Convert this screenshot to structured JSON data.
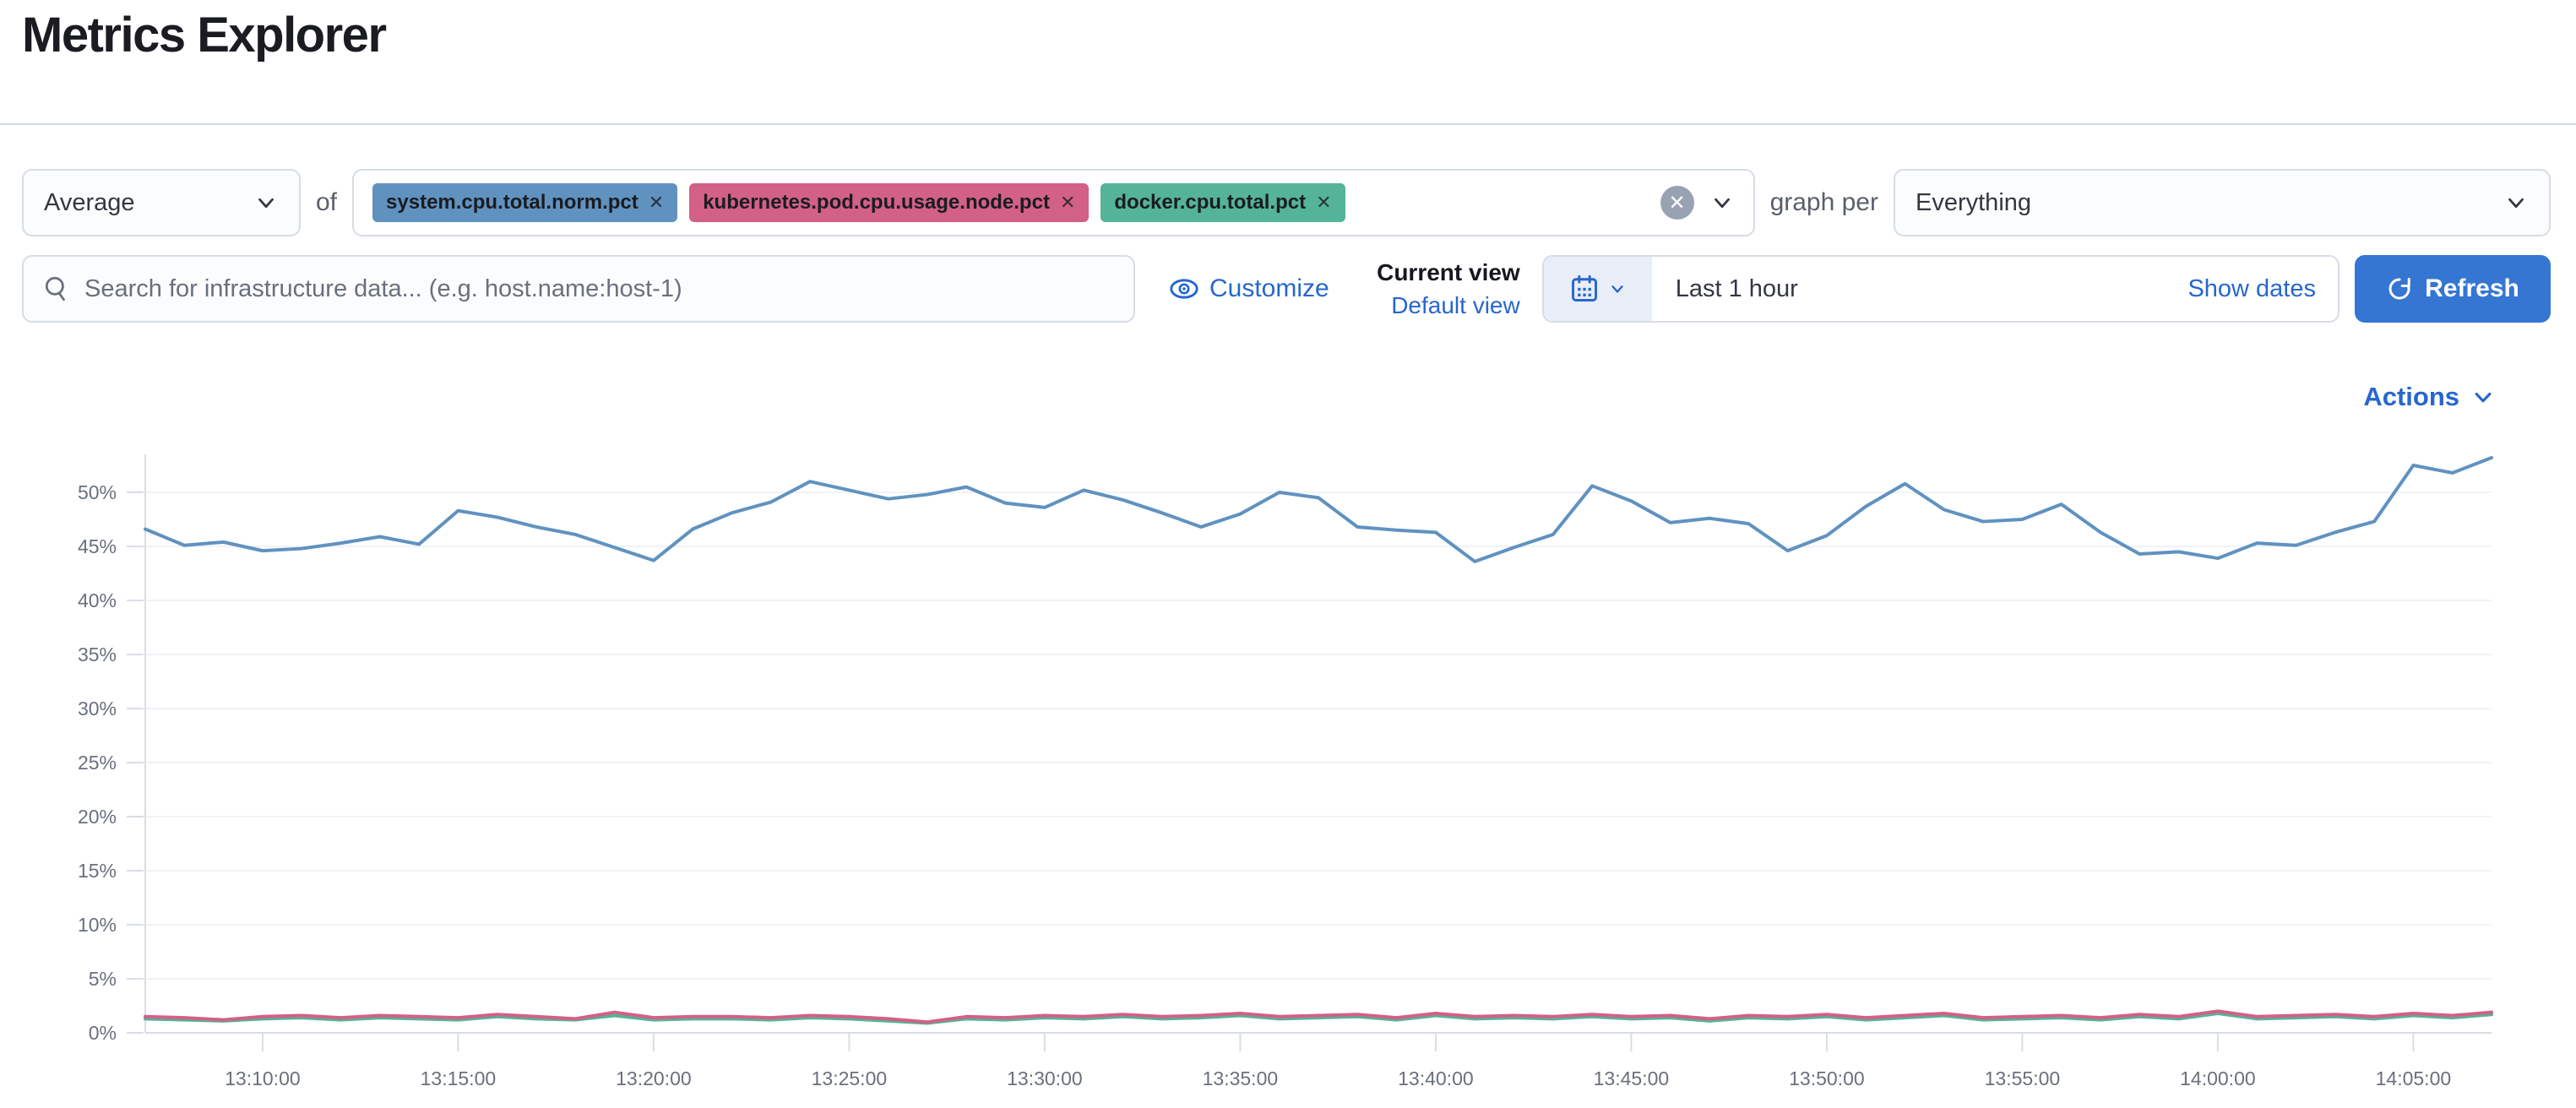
{
  "header": {
    "title": "Metrics Explorer"
  },
  "colors": {
    "link": "#2767cb",
    "primary_button": "#3476d2",
    "border": "#d7dce5",
    "field_bg": "#fbfcfd",
    "clear_circle": "#98a2b3"
  },
  "icons": {
    "remove_glyph": "✕",
    "clear_glyph": "✕"
  },
  "controls": {
    "aggregation": {
      "value": "Average"
    },
    "of_label": "of",
    "metrics": [
      {
        "label": "system.cpu.total.norm.pct",
        "color": "#6092C0"
      },
      {
        "label": "kubernetes.pod.cpu.usage.node.pct",
        "color": "#D36086"
      },
      {
        "label": "docker.cpu.total.pct",
        "color": "#54B399"
      }
    ],
    "graph_per_label": "graph per",
    "graph_per": {
      "value": "Everything"
    }
  },
  "toolbar": {
    "search_placeholder": "Search for infrastructure data... (e.g. host.name:host-1)",
    "search_value": "",
    "customize_label": "Customize",
    "current_view_label": "Current view",
    "default_view_label": "Default view",
    "time_range": "Last 1 hour",
    "show_dates_label": "Show dates",
    "refresh_label": "Refresh"
  },
  "actions": {
    "label": "Actions"
  },
  "chart_data": {
    "type": "line",
    "title": "",
    "xlabel": "",
    "ylabel": "",
    "unit": "%",
    "ylim": [
      0,
      55
    ],
    "grid": true,
    "legend": "none",
    "y_ticks": [
      0,
      5,
      10,
      15,
      20,
      25,
      30,
      35,
      40,
      45,
      50
    ],
    "x_ticks": [
      "13:10:00",
      "13:15:00",
      "13:20:00",
      "13:25:00",
      "13:30:00",
      "13:35:00",
      "13:40:00",
      "13:45:00",
      "13:50:00",
      "13:55:00",
      "14:00:00",
      "14:05:00"
    ],
    "x_range": [
      "13:07:00",
      "14:07:00"
    ],
    "x_first_tick_minute": 3,
    "x_tick_step_minutes": 5,
    "colors": {
      "grid": "#f0f2f6",
      "axis": "#d9dde4",
      "tick_text": "#69707d"
    },
    "series": [
      {
        "name": "system.cpu.total.norm.pct",
        "color": "#6092C0",
        "values": [
          46.6,
          45.1,
          45.4,
          44.6,
          44.8,
          45.3,
          45.9,
          45.2,
          48.3,
          47.7,
          46.8,
          46.1,
          44.9,
          43.7,
          46.6,
          48.1,
          49.1,
          51.0,
          50.2,
          49.4,
          49.8,
          50.5,
          49.0,
          48.6,
          50.2,
          49.3,
          48.1,
          46.8,
          48.0,
          50.0,
          49.5,
          46.8,
          46.5,
          46.3,
          43.6,
          44.9,
          46.1,
          50.6,
          49.2,
          47.2,
          47.6,
          47.1,
          44.6,
          46.0,
          48.7,
          50.8,
          48.4,
          47.3,
          47.5,
          48.9,
          46.3,
          44.3,
          44.5,
          43.9,
          45.3,
          45.1,
          46.3,
          47.3,
          52.5,
          51.8,
          53.2
        ]
      },
      {
        "name": "kubernetes.pod.cpu.usage.node.pct",
        "color": "#D36086",
        "values": [
          1.5,
          1.4,
          1.2,
          1.5,
          1.6,
          1.4,
          1.6,
          1.5,
          1.4,
          1.7,
          1.5,
          1.3,
          1.9,
          1.4,
          1.5,
          1.5,
          1.4,
          1.6,
          1.5,
          1.3,
          1.0,
          1.5,
          1.4,
          1.6,
          1.5,
          1.7,
          1.5,
          1.6,
          1.8,
          1.5,
          1.6,
          1.7,
          1.4,
          1.8,
          1.5,
          1.6,
          1.5,
          1.7,
          1.5,
          1.6,
          1.3,
          1.6,
          1.5,
          1.7,
          1.4,
          1.6,
          1.8,
          1.4,
          1.5,
          1.6,
          1.4,
          1.7,
          1.5,
          2.0,
          1.5,
          1.6,
          1.7,
          1.5,
          1.8,
          1.6,
          1.9
        ]
      },
      {
        "name": "docker.cpu.total.pct",
        "color": "#54B399",
        "values": [
          1.3,
          1.2,
          1.1,
          1.3,
          1.4,
          1.2,
          1.4,
          1.3,
          1.2,
          1.5,
          1.3,
          1.2,
          1.6,
          1.2,
          1.3,
          1.3,
          1.2,
          1.4,
          1.3,
          1.1,
          0.9,
          1.3,
          1.2,
          1.4,
          1.3,
          1.5,
          1.3,
          1.4,
          1.6,
          1.3,
          1.4,
          1.5,
          1.2,
          1.6,
          1.3,
          1.4,
          1.3,
          1.5,
          1.3,
          1.4,
          1.1,
          1.4,
          1.3,
          1.5,
          1.2,
          1.4,
          1.6,
          1.2,
          1.3,
          1.4,
          1.2,
          1.5,
          1.3,
          1.8,
          1.3,
          1.4,
          1.5,
          1.3,
          1.6,
          1.4,
          1.7
        ]
      }
    ]
  }
}
